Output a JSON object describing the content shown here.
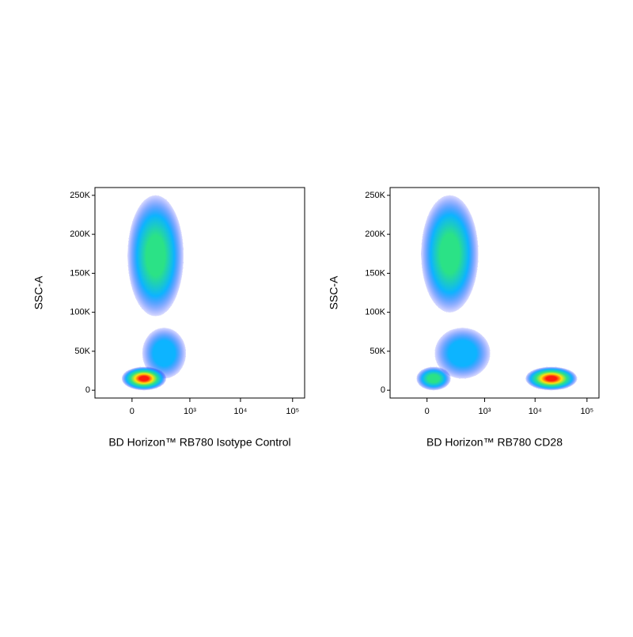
{
  "chart_data": [
    {
      "type": "density",
      "xlabel": "BD Horizon™ RB780 Isotype Control",
      "ylabel": "SSC-A",
      "xscale": "biexponential",
      "xlim": [
        -350,
        170000
      ],
      "ylim": [
        -10000,
        260000
      ],
      "xticks": [
        0,
        {
          "value": 1000,
          "label": "10³"
        },
        {
          "value": 10000,
          "label": "10⁴"
        },
        {
          "value": 100000,
          "label": "10⁵"
        }
      ],
      "yticks": [
        0,
        {
          "value": 50000,
          "label": "50K"
        },
        {
          "value": 100000,
          "label": "100K"
        },
        {
          "value": 150000,
          "label": "150K"
        },
        {
          "value": 200000,
          "label": "200K"
        },
        {
          "value": 250000,
          "label": "250K"
        }
      ],
      "colormap": [
        "#0010ff",
        "#00b0ff",
        "#20e080",
        "#ffe000",
        "#ff1000"
      ],
      "populations": [
        {
          "x": [
            -18,
            736
          ],
          "y": [
            95000,
            250000
          ],
          "peak": 2
        },
        {
          "x": [
            49,
            826
          ],
          "y": [
            15000,
            80000
          ],
          "peak": 1
        },
        {
          "x": [
            -48,
            296
          ],
          "y": [
            0,
            30000
          ],
          "peak": 4
        }
      ]
    },
    {
      "type": "density",
      "xlabel": "BD Horizon™ RB780 CD28",
      "ylabel": "SSC-A",
      "xscale": "biexponential",
      "xlim": [
        -350,
        170000
      ],
      "ylim": [
        -10000,
        260000
      ],
      "xticks": [
        0,
        {
          "value": 1000,
          "label": "10³"
        },
        {
          "value": 10000,
          "label": "10⁴"
        },
        {
          "value": 100000,
          "label": "10⁵"
        }
      ],
      "yticks": [
        0,
        {
          "value": 50000,
          "label": "50K"
        },
        {
          "value": 100000,
          "label": "100K"
        },
        {
          "value": 150000,
          "label": "150K"
        },
        {
          "value": 200000,
          "label": "200K"
        },
        {
          "value": 250000,
          "label": "250K"
        }
      ],
      "colormap": [
        "#0010ff",
        "#00b0ff",
        "#20e080",
        "#ffe000",
        "#ff1000"
      ],
      "populations": [
        {
          "x": [
            -25,
            736
          ],
          "y": [
            100000,
            250000
          ],
          "peak": 2
        },
        {
          "x": [
            35,
            1300
          ],
          "y": [
            15000,
            80000
          ],
          "peak": 1
        },
        {
          "x": [
            -50,
            157
          ],
          "y": [
            0,
            30000
          ],
          "peak": 2
        },
        {
          "x": [
            6580,
            64400
          ],
          "y": [
            0,
            30000
          ],
          "peak": 4
        }
      ]
    }
  ]
}
